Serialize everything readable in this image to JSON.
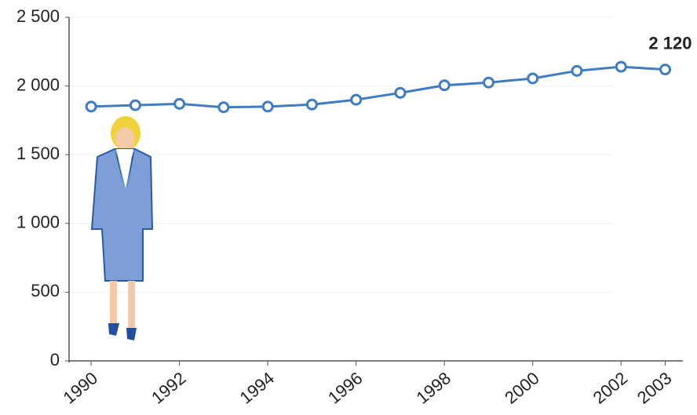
{
  "chart_data": {
    "type": "line",
    "x": [
      1990,
      1991,
      1992,
      1993,
      1994,
      1995,
      1996,
      1997,
      1998,
      1999,
      2000,
      2001,
      2002,
      2003
    ],
    "series": [
      {
        "color": "#3f7cc4",
        "values": [
          1850,
          1860,
          1870,
          1845,
          1850,
          1865,
          1900,
          1950,
          2005,
          2025,
          2055,
          2110,
          2140,
          2120
        ],
        "value_labels": [
          null,
          null,
          null,
          null,
          null,
          null,
          null,
          null,
          null,
          null,
          null,
          null,
          null,
          "2 120"
        ]
      }
    ],
    "xlim": [
      1989.5,
      2003.4
    ],
    "xticks": [
      1990,
      1992,
      1994,
      1996,
      1998,
      2000,
      2002,
      2003
    ],
    "ylim": [
      0,
      2500
    ],
    "yticks": [
      0,
      500,
      {
        "value": 1000,
        "label": "1 000"
      },
      {
        "value": 1500,
        "label": "1 500"
      },
      {
        "value": 2000,
        "label": "2 000"
      },
      {
        "value": 2500,
        "label": "2 500"
      }
    ],
    "grid": true
  }
}
